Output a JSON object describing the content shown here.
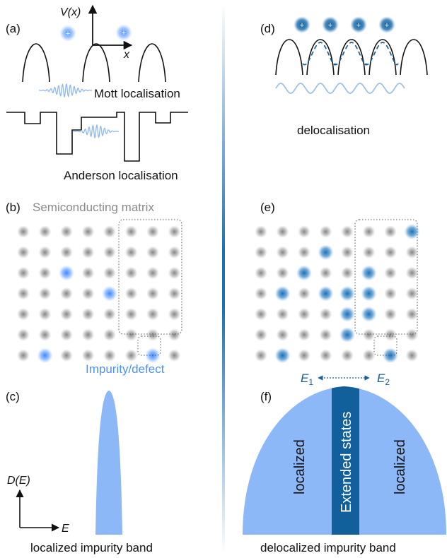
{
  "colors": {
    "grey_site": "#8c8c8c",
    "impurity_light": "#4a90ff",
    "impurity_dark": "#1e6fb0",
    "band_light": "#8db8f7",
    "band_dark": "#11609c",
    "wave_light": "#9ec0ea",
    "wave_dark": "#1a5f94",
    "label_grey": "#8a8a8a",
    "label_blue": "#4a90ff"
  },
  "panel_a": {
    "label": "(a)",
    "axis_y": "V(x)",
    "axis_x": "x",
    "mott_caption": "Mott localisation",
    "anderson_caption": "Anderson localisation",
    "plus_icon": "plus-sign"
  },
  "panel_b": {
    "label": "(b)",
    "matrix_label": "Semiconducting matrix",
    "impurity_label": "Impurity/defect"
  },
  "panel_c": {
    "label": "(c)",
    "axis_y": "D(E)",
    "axis_x": "E",
    "caption": "localized impurity band"
  },
  "panel_d": {
    "label": "(d)",
    "caption": "delocalisation"
  },
  "panel_e": {
    "label": "(e)"
  },
  "panel_f": {
    "label": "(f)",
    "e1_base": "E",
    "e1_sub": "1",
    "e2_base": "E",
    "e2_sub": "2",
    "left_label": "localized",
    "center_label": "Extended states",
    "right_label": "localized",
    "caption": "delocalized impurity band"
  }
}
